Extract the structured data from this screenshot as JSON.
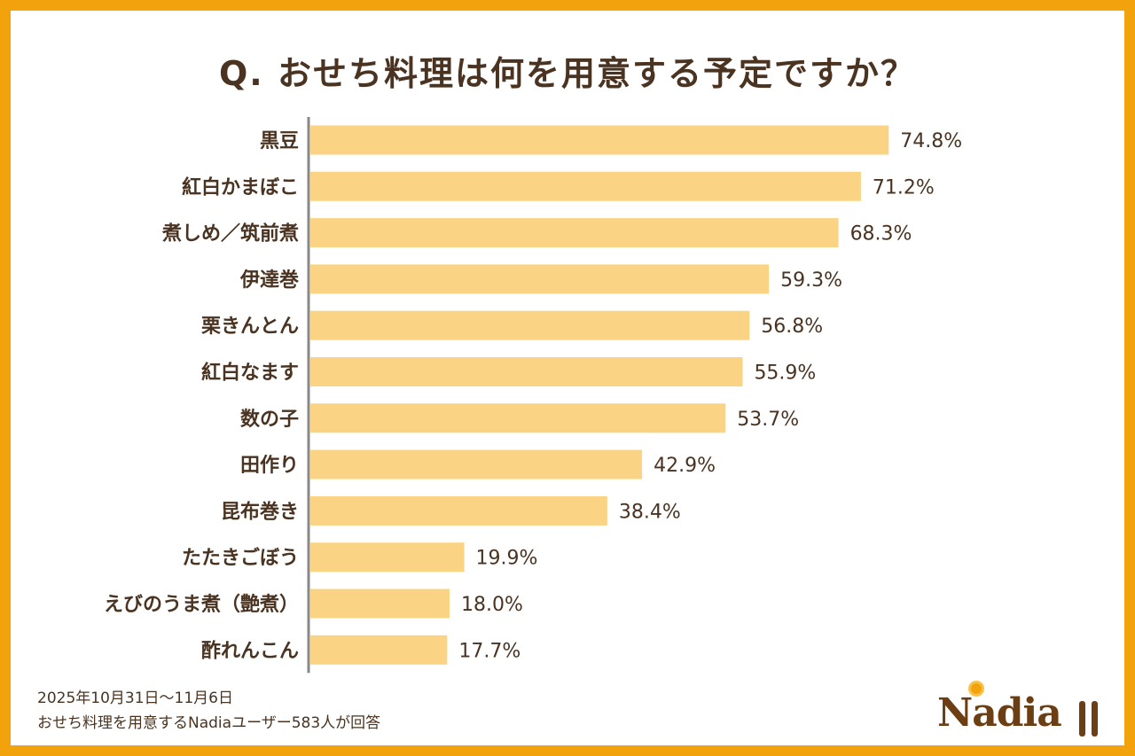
{
  "chart_data": {
    "type": "bar",
    "orientation": "horizontal",
    "title": "Q. おせち料理は何を用意する予定ですか？",
    "categories": [
      "黒豆",
      "紅白かまぼこ",
      "煮しめ／筑前煮",
      "伊達巻",
      "栗きんとん",
      "紅白なます",
      "数の子",
      "田作り",
      "昆布巻き",
      "たたきごぼう",
      "えびのうま煮（艶煮）",
      "酢れんこん"
    ],
    "values": [
      74.8,
      71.2,
      68.3,
      59.3,
      56.8,
      55.9,
      53.7,
      42.9,
      38.4,
      19.9,
      18.0,
      17.7
    ],
    "value_labels": [
      "74.8%",
      "71.2%",
      "68.3%",
      "59.3%",
      "56.8%",
      "55.9%",
      "53.7%",
      "42.9%",
      "38.4%",
      "19.9%",
      "18.0%",
      "17.7%"
    ],
    "xlim": [
      0,
      100
    ],
    "grid": false,
    "bar_color": "#FAD384",
    "axis_color": "#888888"
  },
  "footer": {
    "line1": "2025年10月31日～11月6日",
    "line2": "おせち料理を用意するNadiaユーザー583人が回答"
  },
  "logo": {
    "text": "Nadia"
  },
  "colors": {
    "frame": "#F2A20A",
    "text": "#4A3320",
    "logo": "#6B3E14"
  }
}
